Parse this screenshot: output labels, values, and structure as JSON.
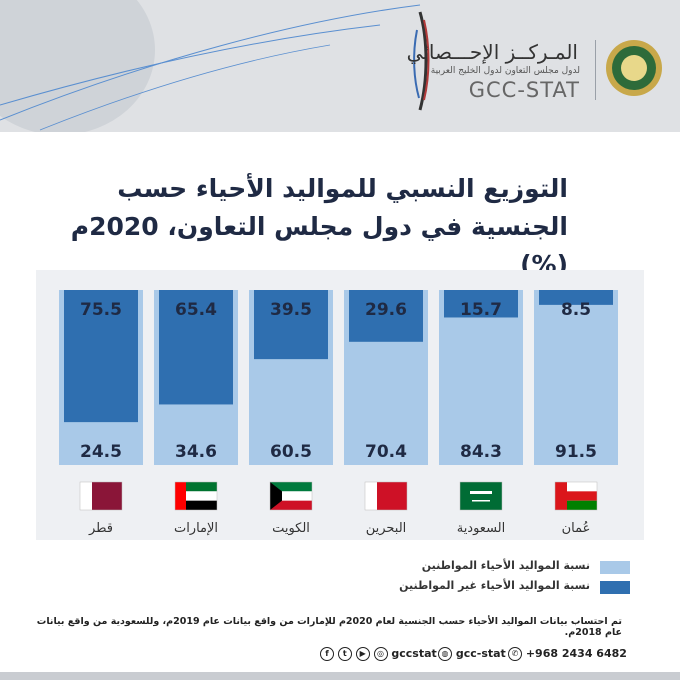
{
  "header": {
    "org_name_ar": "المـركــز الإحـــصائي",
    "org_subtitle_ar": "لدول مجلس التعاون لدول الخليج العربية",
    "org_name_en": "GCC-STAT"
  },
  "title": {
    "line1": "التوزيع النسبي للمواليد الأحياء حسب",
    "line2": "الجنسية في دول مجلس التعاون، 2020م  (%)"
  },
  "chart_data": {
    "type": "bar",
    "stacked": true,
    "percent": true,
    "categories": [
      "قطر",
      "الإمارات",
      "الكويت",
      "البحرين",
      "السعودية",
      "عُمان"
    ],
    "series": [
      {
        "name": "نسبة المواليد الأحياء المواطنين",
        "color": "#a9c9e8",
        "values": [
          24.5,
          34.6,
          60.5,
          70.4,
          84.3,
          91.5
        ]
      },
      {
        "name": "نسبة المواليد الأحياء غير المواطنين",
        "color": "#2f6fb0",
        "values": [
          75.5,
          65.4,
          39.5,
          29.6,
          15.7,
          8.5
        ]
      }
    ],
    "ylim": [
      0,
      100
    ],
    "legend_position": "bottom-right",
    "flags": [
      {
        "country": "قطر",
        "colors": [
          "#8a1538",
          "#ffffff"
        ]
      },
      {
        "country": "الإمارات",
        "colors": [
          "#00732f",
          "#ffffff",
          "#000000",
          "#ff0000"
        ]
      },
      {
        "country": "الكويت",
        "colors": [
          "#007a3d",
          "#ffffff",
          "#ce1126",
          "#000000"
        ]
      },
      {
        "country": "البحرين",
        "colors": [
          "#ce1126",
          "#ffffff"
        ]
      },
      {
        "country": "السعودية",
        "colors": [
          "#006c35",
          "#ffffff"
        ]
      },
      {
        "country": "عُمان",
        "colors": [
          "#db161b",
          "#ffffff",
          "#008000"
        ]
      }
    ]
  },
  "legend": {
    "citizens": "نسبة المواليد الأحياء المواطنين",
    "noncitizens": "نسبة المواليد الأحياء غير المواطنين"
  },
  "footnote": "تم احتساب بيانات المواليد الأحياء حسب الجنسية لعام 2020م للإمارات من واقع بيانات عام 2019م، وللسعودية من واقع بيانات عام 2018م.",
  "social": {
    "handle_social": "gccstat",
    "handle_web": "gcc-stat",
    "phone": "+968 2434 6482"
  },
  "colors": {
    "citizens": "#a9c9e8",
    "noncitizens": "#2f6fb0",
    "title": "#1f2a44",
    "panel": "#eef0f3"
  }
}
